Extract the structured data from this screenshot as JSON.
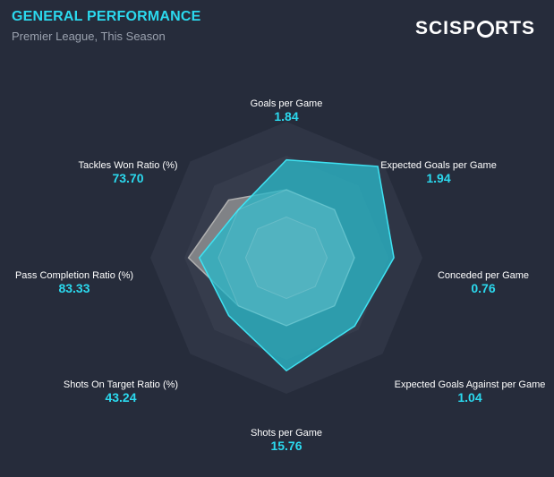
{
  "header": {
    "title": "GENERAL PERFORMANCE",
    "subtitle": "Premier League, This Season",
    "logo_left": "SCISP",
    "logo_right": "RTS"
  },
  "colors": {
    "background": "#262c3b",
    "accent": "#2bd9ee",
    "team_fill": "#2ab7c8",
    "comparison_fill": "#9a9a9a",
    "ring_dark": "#2f3545",
    "ring_light": "#363c4c"
  },
  "chart_data": {
    "type": "radar",
    "title": "GENERAL PERFORMANCE",
    "subtitle": "Premier League, This Season",
    "grid_rings": 4,
    "axes": [
      {
        "label": "Goals per Game",
        "value": "1.84"
      },
      {
        "label": "Expected Goals per Game",
        "value": "1.94"
      },
      {
        "label": "Conceded per Game",
        "value": "0.76"
      },
      {
        "label": "Expected Goals Against per Game",
        "value": "1.04"
      },
      {
        "label": "Shots per Game",
        "value": "15.76"
      },
      {
        "label": "Shots On Target Ratio (%)",
        "value": "43.24"
      },
      {
        "label": "Pass Completion Ratio (%)",
        "value": "83.33"
      },
      {
        "label": "Tackles Won Ratio (%)",
        "value": "73.70"
      }
    ],
    "series": [
      {
        "role": "comparison",
        "color": "#9a9a9a",
        "values": [
          0.5,
          0.5,
          0.5,
          0.5,
          0.5,
          0.5,
          0.72,
          0.6
        ]
      },
      {
        "role": "team",
        "color": "#2ab7c8",
        "values": [
          0.72,
          0.95,
          0.79,
          0.71,
          0.83,
          0.6,
          0.64,
          0.5
        ]
      }
    ]
  }
}
